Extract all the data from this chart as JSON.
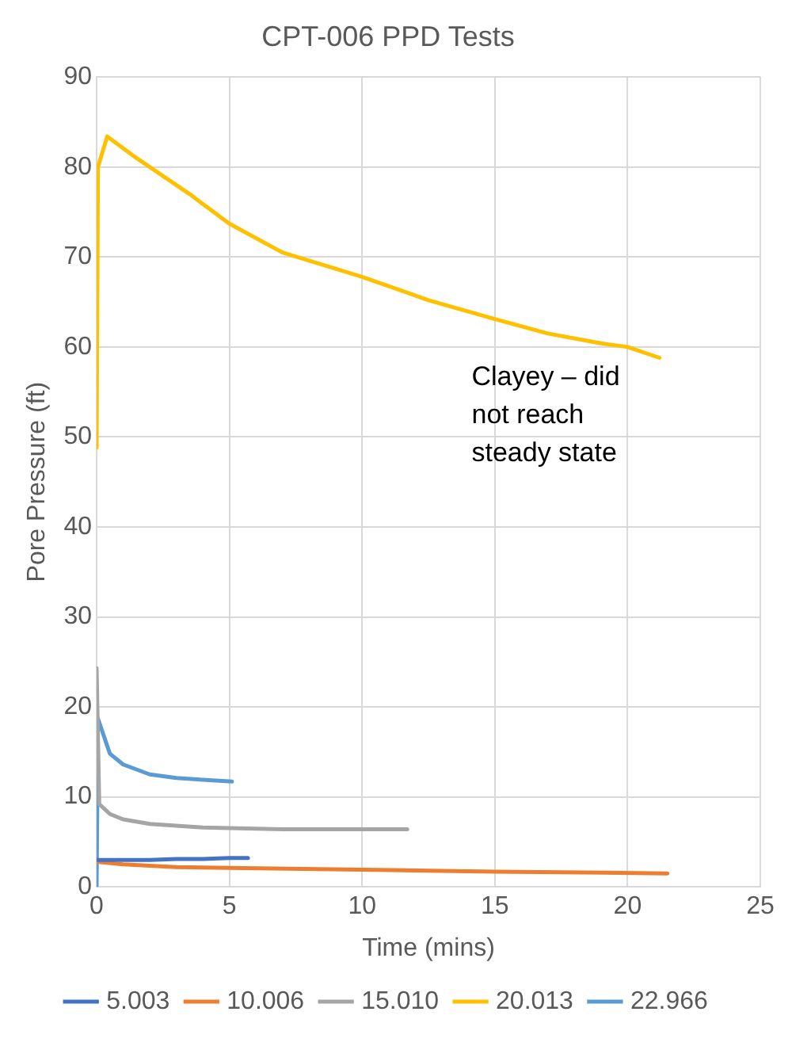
{
  "chart_data": {
    "type": "line",
    "title": "CPT-006 PPD Tests",
    "xlabel": "Time (mins)",
    "ylabel": "Pore Pressure (ft)",
    "xlim": [
      0,
      25
    ],
    "xticks": [
      0,
      5,
      10,
      15,
      20,
      25
    ],
    "ylim": [
      0,
      90
    ],
    "yticks": [
      0,
      10,
      20,
      30,
      40,
      50,
      60,
      70,
      80,
      90
    ],
    "grid": true,
    "legend": "bottom",
    "marker": "none",
    "line_style": "solid",
    "annotations": [
      "Clayey – did not reach steady state"
    ],
    "series": [
      {
        "name": "5.003",
        "color": "#4472c4",
        "x": [
          0,
          1,
          2,
          3,
          4,
          5,
          5.7
        ],
        "values": [
          3.0,
          3.0,
          3.0,
          3.1,
          3.1,
          3.2,
          3.2
        ]
      },
      {
        "name": "10.006",
        "color": "#ed7d31",
        "x": [
          0,
          1,
          3,
          5,
          10,
          15,
          21.5
        ],
        "values": [
          2.8,
          2.5,
          2.2,
          2.1,
          1.9,
          1.7,
          1.5
        ]
      },
      {
        "name": "15.010",
        "color": "#a5a5a5",
        "x": [
          0,
          0.1,
          0.5,
          1,
          2,
          4,
          7,
          10,
          11.7
        ],
        "values": [
          24.3,
          9.2,
          8.1,
          7.5,
          7.0,
          6.6,
          6.4,
          6.4,
          6.4
        ]
      },
      {
        "name": "20.013",
        "color": "#ffc000",
        "x": [
          0,
          0.05,
          0.4,
          1.5,
          3.5,
          5,
          7,
          10,
          12.5,
          15,
          17,
          19,
          20,
          21.2
        ],
        "values": [
          48.8,
          80,
          83.4,
          81,
          77,
          73.7,
          70.5,
          67.8,
          65.2,
          63.1,
          61.5,
          60.4,
          60,
          58.8
        ]
      },
      {
        "name": "22.966",
        "color": "#5b9bd5",
        "x": [
          0,
          0.05,
          0.5,
          1,
          2,
          3,
          4,
          5.1
        ],
        "values": [
          0,
          18.7,
          14.8,
          13.6,
          12.5,
          12.1,
          11.9,
          11.7
        ]
      }
    ]
  }
}
